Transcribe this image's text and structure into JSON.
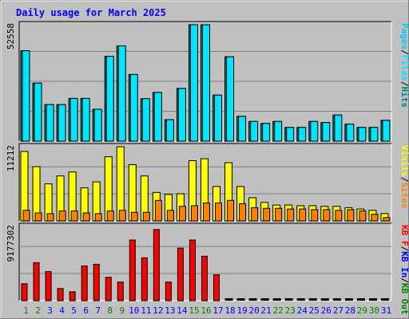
{
  "window": {
    "title": "Daily usage for March 2025"
  },
  "colors": {
    "frame_bg": "#c0c0c0",
    "plot_bg": "#c0c0c0",
    "pages": "#00ccff",
    "hits": "#008080",
    "files": "#00e5ff",
    "visits": "#ffff00",
    "sites": "#ff8000",
    "kbout": "#008000",
    "kbin": "#0000ff",
    "kbf": "#ff0000",
    "title": "#0000ff",
    "weekend_day": "#008000",
    "weekday": "#0000ff"
  },
  "chart_data": [
    {
      "type": "bar",
      "panel": "top",
      "title": "Daily usage for March 2025",
      "ytick_label": "52558",
      "ylim": [
        0,
        52558
      ],
      "legend_words": [
        "Pages",
        "/",
        "Files",
        "/",
        "Hits"
      ],
      "categories": [
        "1",
        "2",
        "3",
        "4",
        "5",
        "6",
        "7",
        "8",
        "9",
        "10",
        "11",
        "12",
        "13",
        "14",
        "15",
        "16",
        "17",
        "18",
        "19",
        "20",
        "21",
        "22",
        "23",
        "24",
        "25",
        "26",
        "27",
        "28",
        "29",
        "30",
        "31"
      ],
      "series": [
        {
          "name": "Hits",
          "values": [
            40800,
            26200,
            16500,
            16500,
            19300,
            19300,
            14400,
            38300,
            43000,
            30100,
            19200,
            22000,
            9700,
            23800,
            52558,
            52558,
            20800,
            38100,
            11200,
            8900,
            8000,
            8900,
            6200,
            6200,
            8900,
            8400,
            11800,
            7700,
            6200,
            6200,
            9400
          ]
        },
        {
          "name": "Files",
          "values": [
            40800,
            26200,
            16500,
            16500,
            19300,
            19300,
            14400,
            38300,
            43000,
            30100,
            19200,
            22000,
            9700,
            23800,
            52558,
            52558,
            20800,
            38100,
            11200,
            8900,
            8000,
            8900,
            6200,
            6200,
            8900,
            8400,
            11800,
            7700,
            6200,
            6200,
            9400
          ]
        },
        {
          "name": "Pages",
          "values": [
            0,
            0,
            0,
            0,
            0,
            0,
            0,
            0,
            0,
            0,
            0,
            0,
            0,
            0,
            0,
            0,
            0,
            0,
            0,
            0,
            0,
            0,
            0,
            0,
            0,
            0,
            0,
            0,
            0,
            0,
            0
          ]
        }
      ]
    },
    {
      "type": "bar",
      "panel": "middle",
      "ytick_label": "11212",
      "ylim": [
        0,
        11212
      ],
      "legend_words": [
        "Visits",
        "/",
        "Sites"
      ],
      "categories": [
        "1",
        "2",
        "3",
        "4",
        "5",
        "6",
        "7",
        "8",
        "9",
        "10",
        "11",
        "12",
        "13",
        "14",
        "15",
        "16",
        "17",
        "18",
        "19",
        "20",
        "21",
        "22",
        "23",
        "24",
        "25",
        "26",
        "27",
        "28",
        "29",
        "30",
        "31"
      ],
      "series": [
        {
          "name": "Visits",
          "values": [
            10500,
            8200,
            5600,
            6800,
            7400,
            5000,
            5900,
            9700,
            11212,
            8500,
            6800,
            4300,
            4000,
            4100,
            9100,
            9400,
            5200,
            8800,
            5200,
            3500,
            2800,
            2400,
            2400,
            2300,
            2300,
            2200,
            2200,
            2000,
            1800,
            1600,
            1100
          ]
        },
        {
          "name": "Sites",
          "values": [
            1600,
            1200,
            1100,
            1500,
            1500,
            1200,
            1100,
            1500,
            1600,
            1300,
            1300,
            3100,
            1600,
            2200,
            2300,
            2700,
            2700,
            3100,
            2600,
            2000,
            1900,
            1900,
            1800,
            1800,
            1700,
            1700,
            1600,
            1700,
            1500,
            1000,
            500
          ]
        }
      ]
    },
    {
      "type": "bar",
      "panel": "bottom",
      "ytick_label": "9177302",
      "ylim": [
        0,
        9177302
      ],
      "legend_words": [
        "KB F",
        "/",
        "KB In",
        "/",
        "KB Out"
      ],
      "categories": [
        "1",
        "2",
        "3",
        "4",
        "5",
        "6",
        "7",
        "8",
        "9",
        "10",
        "11",
        "12",
        "13",
        "14",
        "15",
        "16",
        "17",
        "18",
        "19",
        "20",
        "21",
        "22",
        "23",
        "24",
        "25",
        "26",
        "27",
        "28",
        "29",
        "30",
        "31"
      ],
      "series": [
        {
          "name": "KB F",
          "values": [
            2100000,
            4700000,
            3600000,
            1500000,
            1100000,
            4300000,
            4500000,
            2900000,
            2300000,
            7500000,
            5300000,
            8800000,
            2300000,
            6500000,
            7500000,
            5500000,
            3200000,
            0,
            0,
            0,
            0,
            0,
            0,
            0,
            0,
            0,
            0,
            0,
            0,
            0,
            0
          ]
        }
      ]
    }
  ],
  "weekend_days": [
    "1",
    "2",
    "8",
    "9",
    "15",
    "16",
    "22",
    "23",
    "29",
    "30"
  ]
}
